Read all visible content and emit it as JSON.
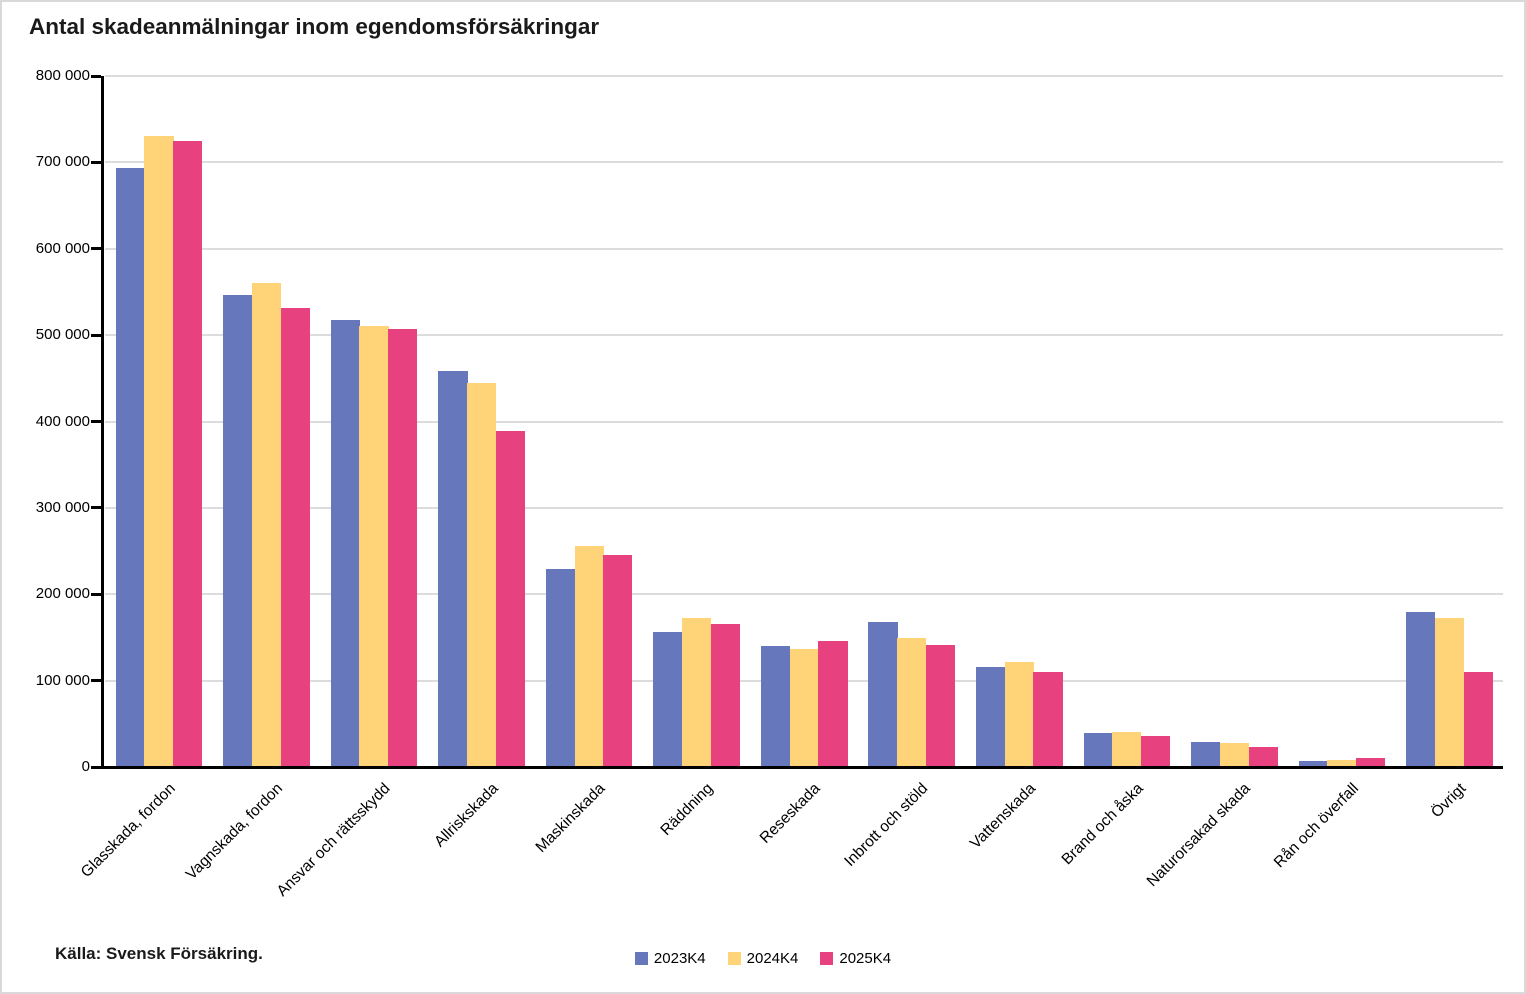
{
  "title": "Antal skadeanmälningar inom egendomsförsäkringar",
  "source": "Källa: Svensk Försäkring.",
  "colors": {
    "series_2023": "#6678BB",
    "series_2024": "#FFD378",
    "series_2025": "#E8417F",
    "gridline": "#DCDCDC",
    "axis": "#000000",
    "frame_border": "#D9D9D9",
    "title_text": "#1A1A1A"
  },
  "chart_data": {
    "type": "bar",
    "title": "Antal skadeanmälningar inom egendomsförsäkringar",
    "xlabel": "",
    "ylabel": "",
    "ylim": [
      0,
      800000
    ],
    "ytick_interval": 100000,
    "ytick_labels": [
      "0",
      "100 000",
      "200 000",
      "300 000",
      "400 000",
      "500 000",
      "600 000",
      "700 000",
      "800 000"
    ],
    "grid": true,
    "legend_position": "bottom-center",
    "categories": [
      "Glasskada, fordon",
      "Vagnskada, fordon",
      "Ansvar och rättsskydd",
      "Allriskskada",
      "Maskinskada",
      "Räddning",
      "Reseskada",
      "Inbrott och stöld",
      "Vattenskada",
      "Brand och åska",
      "Naturorsakad skada",
      "Rån och överfall",
      "Övrigt"
    ],
    "series": [
      {
        "name": "2023K4",
        "color": "#6678BB",
        "values": [
          693000,
          546000,
          517000,
          458000,
          229000,
          156000,
          140000,
          168000,
          116000,
          39000,
          29000,
          7000,
          179000
        ]
      },
      {
        "name": "2024K4",
        "color": "#FFD378",
        "values": [
          730000,
          560000,
          511000,
          444000,
          256000,
          173000,
          137000,
          149000,
          122000,
          41000,
          28000,
          8000,
          173000
        ]
      },
      {
        "name": "2025K4",
        "color": "#E8417F",
        "values": [
          725000,
          531000,
          507000,
          389000,
          245000,
          166000,
          146000,
          141000,
          110000,
          36000,
          23000,
          10000,
          110000
        ]
      }
    ],
    "source": "Källa: Svensk Försäkring."
  }
}
